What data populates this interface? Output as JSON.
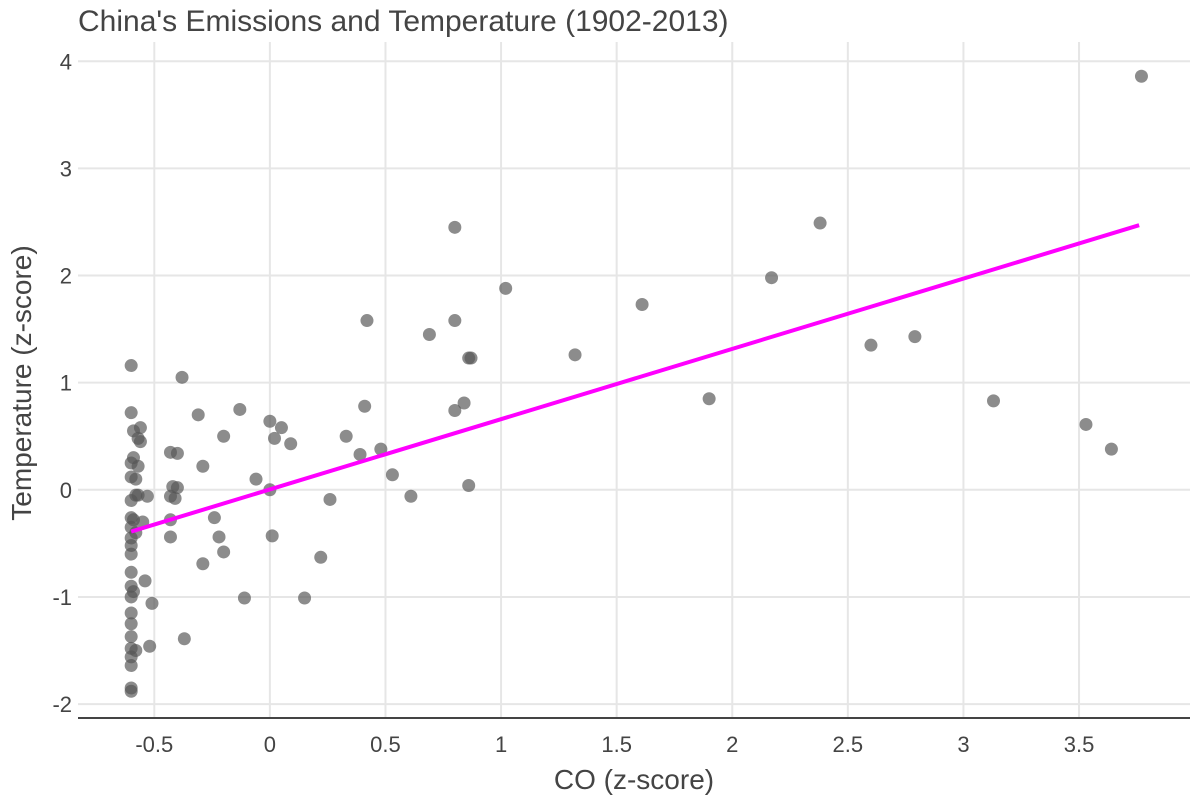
{
  "chart_data": {
    "type": "scatter",
    "title": "China's Emissions and Temperature (1902-2013)",
    "xlabel": "CO  (z-score)",
    "ylabel": "Temperature (z-score)",
    "xlim": [
      -0.83,
      3.98
    ],
    "ylim": [
      -2.13,
      4.18
    ],
    "x_ticks": [
      -0.5,
      0,
      0.5,
      1,
      1.5,
      2,
      2.5,
      3,
      3.5
    ],
    "x_tick_labels": [
      "-0.5",
      "0",
      "0.5",
      "1",
      "1.5",
      "2",
      "2.5",
      "3",
      "3.5"
    ],
    "y_ticks": [
      -2,
      -1,
      0,
      1,
      2,
      3,
      4
    ],
    "y_tick_labels": [
      "-2",
      "-1",
      "0",
      "1",
      "2",
      "3",
      "4"
    ],
    "grid": true,
    "colors": {
      "points": "#555555",
      "trend_line": "#ff00ff",
      "grid": "#e6e6e6",
      "text": "#444444"
    },
    "trend_line": {
      "x": [
        -0.6,
        3.76
      ],
      "y": [
        -0.39,
        2.47
      ]
    },
    "points": [
      [
        -0.6,
        1.16
      ],
      [
        -0.6,
        0.72
      ],
      [
        -0.59,
        0.55
      ],
      [
        -0.6,
        0.25
      ],
      [
        -0.6,
        0.12
      ],
      [
        -0.6,
        -0.1
      ],
      [
        -0.6,
        -0.26
      ],
      [
        -0.6,
        -0.35
      ],
      [
        -0.6,
        -0.45
      ],
      [
        -0.6,
        -0.52
      ],
      [
        -0.6,
        -0.6
      ],
      [
        -0.6,
        -0.77
      ],
      [
        -0.6,
        -0.9
      ],
      [
        -0.6,
        -1.0
      ],
      [
        -0.6,
        -1.15
      ],
      [
        -0.6,
        -1.25
      ],
      [
        -0.6,
        -1.37
      ],
      [
        -0.6,
        -1.48
      ],
      [
        -0.6,
        -1.56
      ],
      [
        -0.6,
        -1.64
      ],
      [
        -0.6,
        -1.85
      ],
      [
        -0.6,
        -1.88
      ],
      [
        -0.59,
        -0.28
      ],
      [
        -0.59,
        -0.95
      ],
      [
        -0.59,
        0.3
      ],
      [
        -0.58,
        0.1
      ],
      [
        -0.58,
        -0.05
      ],
      [
        -0.58,
        -0.4
      ],
      [
        -0.58,
        -1.5
      ],
      [
        -0.57,
        0.22
      ],
      [
        -0.57,
        0.48
      ],
      [
        -0.57,
        -0.05
      ],
      [
        -0.56,
        0.58
      ],
      [
        -0.56,
        0.45
      ],
      [
        -0.55,
        -0.3
      ],
      [
        -0.54,
        -0.85
      ],
      [
        -0.53,
        -0.06
      ],
      [
        -0.52,
        -1.46
      ],
      [
        -0.51,
        -1.06
      ],
      [
        -0.43,
        0.35
      ],
      [
        -0.43,
        -0.06
      ],
      [
        -0.43,
        -0.28
      ],
      [
        -0.43,
        -0.44
      ],
      [
        -0.42,
        0.03
      ],
      [
        -0.41,
        -0.08
      ],
      [
        -0.4,
        0.34
      ],
      [
        -0.4,
        0.02
      ],
      [
        -0.38,
        1.05
      ],
      [
        -0.37,
        -1.39
      ],
      [
        -0.31,
        0.7
      ],
      [
        -0.29,
        0.22
      ],
      [
        -0.29,
        -0.69
      ],
      [
        -0.24,
        -0.26
      ],
      [
        -0.22,
        -0.44
      ],
      [
        -0.2,
        0.5
      ],
      [
        -0.2,
        -0.58
      ],
      [
        -0.13,
        0.75
      ],
      [
        -0.11,
        -1.01
      ],
      [
        -0.06,
        0.1
      ],
      [
        0.0,
        0.64
      ],
      [
        0.0,
        0.0
      ],
      [
        0.01,
        -0.43
      ],
      [
        0.02,
        0.48
      ],
      [
        0.05,
        0.58
      ],
      [
        0.09,
        0.43
      ],
      [
        0.15,
        -1.01
      ],
      [
        0.22,
        -0.63
      ],
      [
        0.26,
        -0.09
      ],
      [
        0.33,
        0.5
      ],
      [
        0.39,
        0.33
      ],
      [
        0.41,
        0.78
      ],
      [
        0.42,
        1.58
      ],
      [
        0.48,
        0.38
      ],
      [
        0.53,
        0.14
      ],
      [
        0.61,
        -0.06
      ],
      [
        0.69,
        1.45
      ],
      [
        0.8,
        2.45
      ],
      [
        0.8,
        1.58
      ],
      [
        0.8,
        0.74
      ],
      [
        0.84,
        0.81
      ],
      [
        0.86,
        0.04
      ],
      [
        0.86,
        1.23
      ],
      [
        0.87,
        1.23
      ],
      [
        1.02,
        1.88
      ],
      [
        1.32,
        1.26
      ],
      [
        1.61,
        1.73
      ],
      [
        1.9,
        0.85
      ],
      [
        2.17,
        1.98
      ],
      [
        2.38,
        2.49
      ],
      [
        2.6,
        1.35
      ],
      [
        2.79,
        1.43
      ],
      [
        3.13,
        0.83
      ],
      [
        3.53,
        0.61
      ],
      [
        3.64,
        0.38
      ],
      [
        3.77,
        3.86
      ]
    ]
  }
}
